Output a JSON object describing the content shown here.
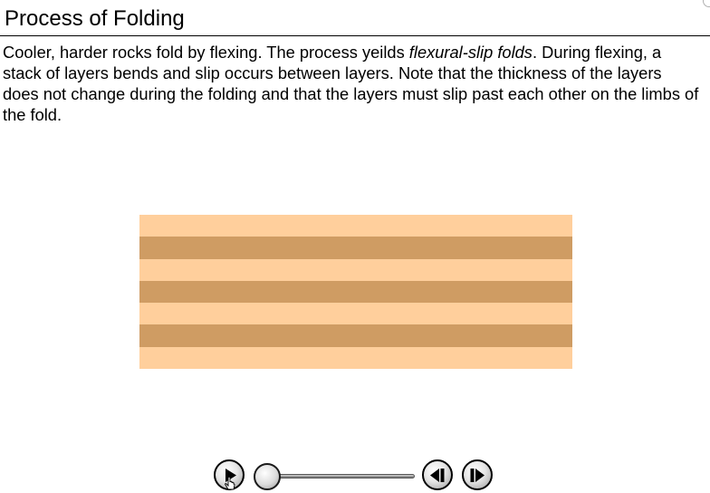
{
  "header": {
    "title": "Process of Folding"
  },
  "body": {
    "text_before": "Cooler, harder rocks fold by flexing. The process yeilds ",
    "emphasis": "flexural-slip folds",
    "text_after": ". During flexing, a stack of layers bends and slip occurs between layers. Note that the thickness of the layers does not change during the folding and that the layers must slip past each other on the limbs of the fold."
  },
  "diagram": {
    "layer_colors": [
      "#FFCF9C",
      "#CF9C63",
      "#FFCF9C",
      "#CF9C63",
      "#FFCF9C",
      "#CF9C63",
      "#FFCF9C"
    ]
  },
  "controls": {
    "play_icon": "play-icon",
    "step_back_icon": "step-back-icon",
    "step_forward_icon": "step-forward-icon",
    "progress": 0
  }
}
